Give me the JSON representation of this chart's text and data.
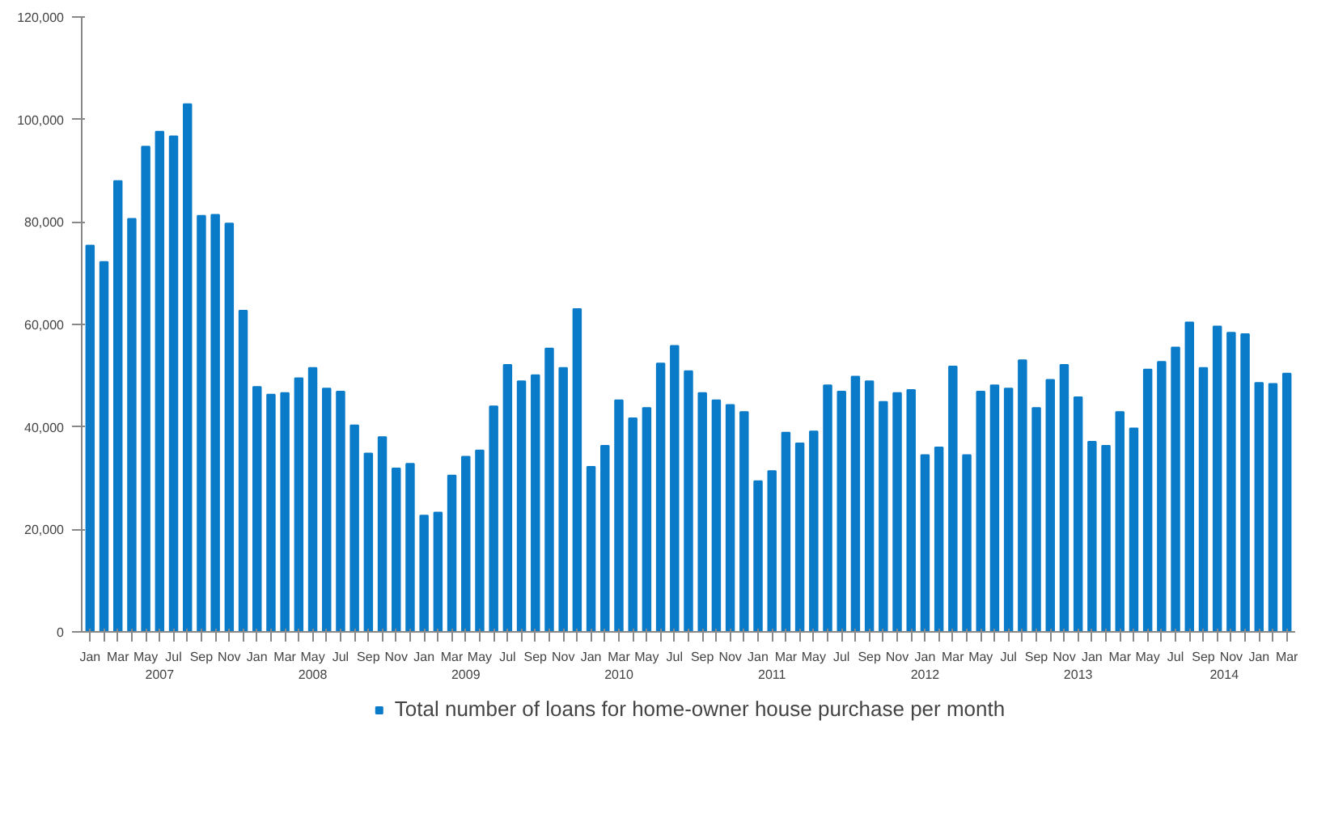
{
  "chart_data": {
    "type": "bar",
    "categories": [
      "Jan",
      null,
      "Mar",
      null,
      "May",
      null,
      "Jul",
      null,
      "Sep",
      null,
      "Nov",
      null,
      "Jan",
      null,
      "Mar",
      null,
      "May",
      null,
      "Jul",
      null,
      "Sep",
      null,
      "Nov",
      null,
      "Jan",
      null,
      "Mar",
      null,
      "May",
      null,
      "Jul",
      null,
      "Sep",
      null,
      "Nov",
      null,
      "Jan",
      null,
      "Mar",
      null,
      "May",
      null,
      "Jul",
      null,
      "Sep",
      null,
      "Nov",
      null,
      "Jan",
      null,
      "Mar",
      null,
      "May",
      null,
      "Jul",
      null,
      "Sep",
      null,
      "Nov",
      null,
      "Jan",
      null,
      "Mar",
      null,
      "May",
      null,
      "Jul",
      null,
      "Sep",
      null,
      "Nov",
      null,
      "Jan",
      null,
      "Mar",
      null,
      "May",
      null,
      "Jul",
      null,
      "Sep",
      null,
      "Nov",
      null,
      "Jan",
      null,
      "Mar"
    ],
    "series": [
      {
        "name": "Total number of loans for home-owner house purchase per month",
        "color": "#0a7bc8",
        "values": [
          75400,
          72200,
          88000,
          80600,
          94700,
          97600,
          96700,
          103000,
          81200,
          81400,
          79700,
          62700,
          47800,
          46300,
          46600,
          49500,
          51500,
          47500,
          46900,
          40300,
          34800,
          38000,
          31900,
          32800,
          22700,
          23300,
          30500,
          34200,
          35400,
          44000,
          52100,
          48900,
          50100,
          55300,
          51500,
          63000,
          32200,
          36300,
          45200,
          41700,
          43700,
          52400,
          55800,
          50900,
          46600,
          45200,
          44300,
          42900,
          29400,
          31400,
          38900,
          36800,
          39100,
          48100,
          46900,
          49800,
          48900,
          44900,
          46600,
          47200,
          34500,
          36000,
          51800,
          34500,
          46900,
          48100,
          47500,
          53000,
          43700,
          49200,
          52100,
          45800,
          37100,
          36300,
          42900,
          39700,
          51200,
          52700,
          55500,
          60400,
          51500,
          59600,
          58400,
          58100,
          48600,
          48400,
          50400
        ]
      }
    ],
    "annotations": [
      "2007",
      "2008",
      "2009",
      "2010",
      "2011",
      "2012",
      "2013",
      "2014"
    ],
    "ylim": [
      0,
      120000
    ],
    "yticks": [
      0,
      {
        "value": 20000,
        "label": "20,000"
      },
      {
        "value": 40000,
        "label": "40,000"
      },
      {
        "value": 60000,
        "label": "60,000"
      },
      {
        "value": 80000,
        "label": "80,000"
      },
      {
        "value": 100000,
        "label": "100,000"
      },
      {
        "value": 120000,
        "label": "120,000"
      }
    ],
    "grid": false,
    "legend": "bottom"
  }
}
